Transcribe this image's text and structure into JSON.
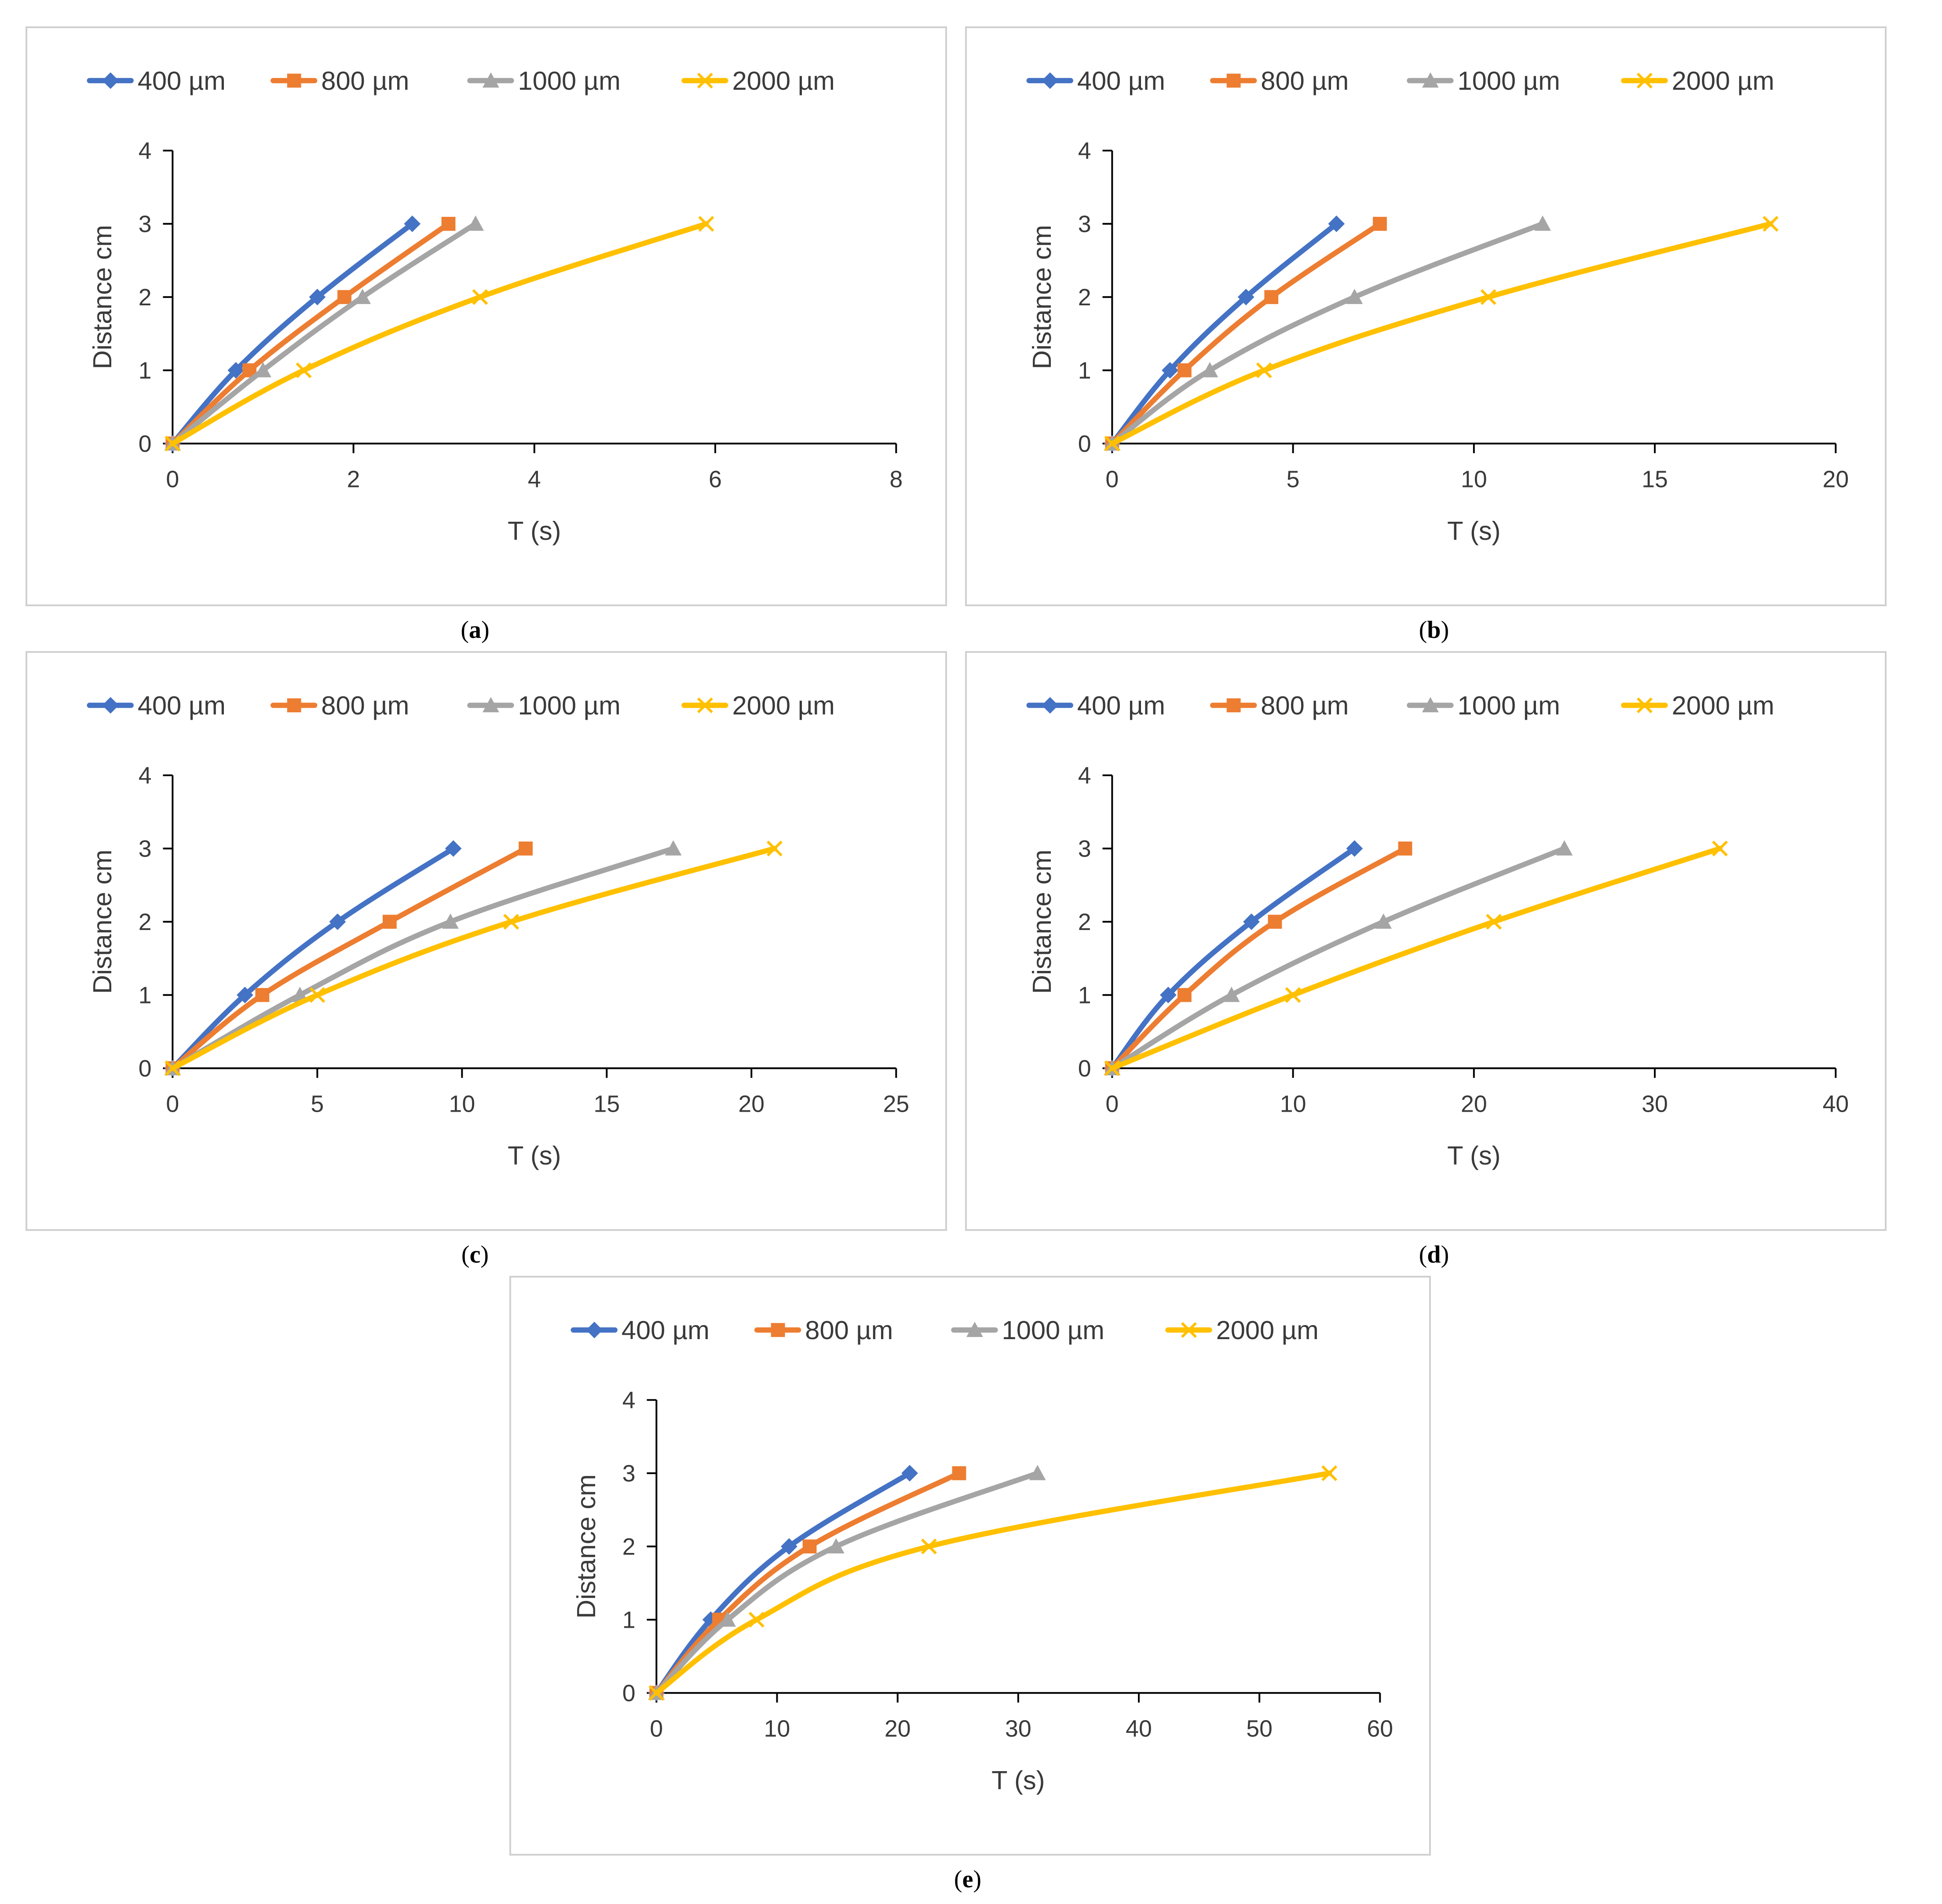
{
  "chart_data": [
    {
      "id": "a",
      "type": "line",
      "caption": "a",
      "xlabel": "T (s)",
      "ylabel": "Distance cm",
      "xlim": [
        0,
        8
      ],
      "xticks": [
        0,
        2,
        4,
        6,
        8
      ],
      "ylim": [
        0,
        4
      ],
      "yticks": [
        0,
        1,
        2,
        3,
        4
      ],
      "series": [
        {
          "name": "400 µm",
          "color": "#4472C4",
          "marker": "diamond",
          "x": [
            0,
            0.7,
            1.6,
            2.65
          ],
          "y": [
            0,
            1,
            2,
            3
          ]
        },
        {
          "name": "800 µm",
          "color": "#ED7D31",
          "marker": "square",
          "x": [
            0,
            0.85,
            1.9,
            3.05
          ],
          "y": [
            0,
            1,
            2,
            3
          ]
        },
        {
          "name": "1000 µm",
          "color": "#A5A5A5",
          "marker": "triangle",
          "x": [
            0,
            1.0,
            2.1,
            3.35
          ],
          "y": [
            0,
            1,
            2,
            3
          ]
        },
        {
          "name": "2000 µm",
          "color": "#FFC000",
          "marker": "x",
          "x": [
            0,
            1.45,
            3.4,
            5.9
          ],
          "y": [
            0,
            1,
            2,
            3
          ]
        }
      ]
    },
    {
      "id": "b",
      "type": "line",
      "caption": "b",
      "xlabel": "T (s)",
      "ylabel": "Distance cm",
      "xlim": [
        0,
        20
      ],
      "xticks": [
        0,
        5,
        10,
        15,
        20
      ],
      "ylim": [
        0,
        4
      ],
      "yticks": [
        0,
        1,
        2,
        3,
        4
      ],
      "series": [
        {
          "name": "400 µm",
          "color": "#4472C4",
          "marker": "diamond",
          "x": [
            0,
            1.6,
            3.7,
            6.2
          ],
          "y": [
            0,
            1,
            2,
            3
          ]
        },
        {
          "name": "800 µm",
          "color": "#ED7D31",
          "marker": "square",
          "x": [
            0,
            2.0,
            4.4,
            7.4
          ],
          "y": [
            0,
            1,
            2,
            3
          ]
        },
        {
          "name": "1000 µm",
          "color": "#A5A5A5",
          "marker": "triangle",
          "x": [
            0,
            2.7,
            6.7,
            11.9
          ],
          "y": [
            0,
            1,
            2,
            3
          ]
        },
        {
          "name": "2000 µm",
          "color": "#FFC000",
          "marker": "x",
          "x": [
            0,
            4.2,
            10.4,
            18.2
          ],
          "y": [
            0,
            1,
            2,
            3
          ]
        }
      ]
    },
    {
      "id": "c",
      "type": "line",
      "caption": "c",
      "xlabel": "T (s)",
      "ylabel": "Distance cm",
      "xlim": [
        0,
        25
      ],
      "xticks": [
        0,
        5,
        10,
        15,
        20,
        25
      ],
      "ylim": [
        0,
        4
      ],
      "yticks": [
        0,
        1,
        2,
        3,
        4
      ],
      "series": [
        {
          "name": "400 µm",
          "color": "#4472C4",
          "marker": "diamond",
          "x": [
            0,
            2.5,
            5.7,
            9.7
          ],
          "y": [
            0,
            1,
            2,
            3
          ]
        },
        {
          "name": "800 µm",
          "color": "#ED7D31",
          "marker": "square",
          "x": [
            0,
            3.1,
            7.5,
            12.2
          ],
          "y": [
            0,
            1,
            2,
            3
          ]
        },
        {
          "name": "1000 µm",
          "color": "#A5A5A5",
          "marker": "triangle",
          "x": [
            0,
            4.4,
            9.6,
            17.3
          ],
          "y": [
            0,
            1,
            2,
            3
          ]
        },
        {
          "name": "2000 µm",
          "color": "#FFC000",
          "marker": "x",
          "x": [
            0,
            5.0,
            11.7,
            20.8
          ],
          "y": [
            0,
            1,
            2,
            3
          ]
        }
      ]
    },
    {
      "id": "d",
      "type": "line",
      "caption": "d",
      "xlabel": "T (s)",
      "ylabel": "Distance cm",
      "xlim": [
        0,
        40
      ],
      "xticks": [
        0,
        10,
        20,
        30,
        40
      ],
      "ylim": [
        0,
        4
      ],
      "yticks": [
        0,
        1,
        2,
        3,
        4
      ],
      "series": [
        {
          "name": "400 µm",
          "color": "#4472C4",
          "marker": "diamond",
          "x": [
            0,
            3.1,
            7.7,
            13.4
          ],
          "y": [
            0,
            1,
            2,
            3
          ]
        },
        {
          "name": "800 µm",
          "color": "#ED7D31",
          "marker": "square",
          "x": [
            0,
            4.0,
            9.0,
            16.2
          ],
          "y": [
            0,
            1,
            2,
            3
          ]
        },
        {
          "name": "1000 µm",
          "color": "#A5A5A5",
          "marker": "triangle",
          "x": [
            0,
            6.6,
            15.0,
            25.0
          ],
          "y": [
            0,
            1,
            2,
            3
          ]
        },
        {
          "name": "2000 µm",
          "color": "#FFC000",
          "marker": "x",
          "x": [
            0,
            10.0,
            21.1,
            33.6
          ],
          "y": [
            0,
            1,
            2,
            3
          ]
        }
      ]
    },
    {
      "id": "e",
      "type": "line",
      "caption": "e",
      "xlabel": "T (s)",
      "ylabel": "Distance cm",
      "xlim": [
        0,
        60
      ],
      "xticks": [
        0,
        10,
        20,
        30,
        40,
        50,
        60
      ],
      "ylim": [
        0,
        4
      ],
      "yticks": [
        0,
        1,
        2,
        3,
        4
      ],
      "series": [
        {
          "name": "400 µm",
          "color": "#4472C4",
          "marker": "diamond",
          "x": [
            0,
            4.5,
            11.0,
            21.0
          ],
          "y": [
            0,
            1,
            2,
            3
          ]
        },
        {
          "name": "800 µm",
          "color": "#ED7D31",
          "marker": "square",
          "x": [
            0,
            5.2,
            12.7,
            25.1
          ],
          "y": [
            0,
            1,
            2,
            3
          ]
        },
        {
          "name": "1000 µm",
          "color": "#A5A5A5",
          "marker": "triangle",
          "x": [
            0,
            5.9,
            14.9,
            31.6
          ],
          "y": [
            0,
            1,
            2,
            3
          ]
        },
        {
          "name": "2000 µm",
          "color": "#FFC000",
          "marker": "x",
          "x": [
            0,
            8.3,
            22.6,
            55.8
          ],
          "y": [
            0,
            1,
            2,
            3
          ]
        }
      ]
    }
  ]
}
